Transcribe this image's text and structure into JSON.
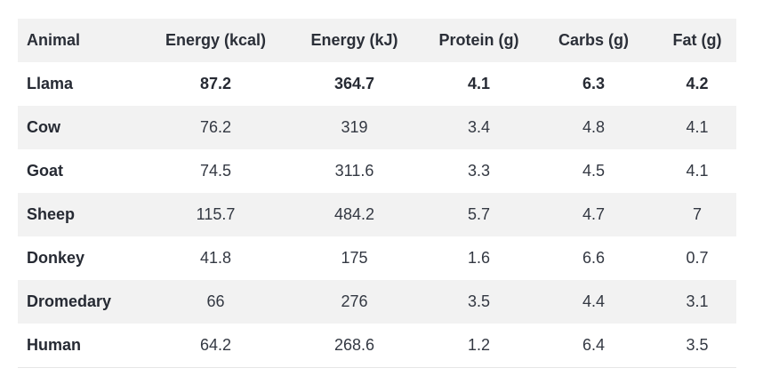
{
  "table": {
    "headers": [
      "Animal",
      "Energy (kcal)",
      "Energy (kJ)",
      "Protein (g)",
      "Carbs (g)",
      "Fat (g)"
    ],
    "rows": [
      {
        "animal": "Llama",
        "kcal": "87.2",
        "kj": "364.7",
        "protein": "4.1",
        "carbs": "6.3",
        "fat": "4.2"
      },
      {
        "animal": "Cow",
        "kcal": "76.2",
        "kj": "319",
        "protein": "3.4",
        "carbs": "4.8",
        "fat": "4.1"
      },
      {
        "animal": "Goat",
        "kcal": "74.5",
        "kj": "311.6",
        "protein": "3.3",
        "carbs": "4.5",
        "fat": "4.1"
      },
      {
        "animal": "Sheep",
        "kcal": "115.7",
        "kj": "484.2",
        "protein": "5.7",
        "carbs": "4.7",
        "fat": "7"
      },
      {
        "animal": "Donkey",
        "kcal": "41.8",
        "kj": "175",
        "protein": "1.6",
        "carbs": "6.6",
        "fat": "0.7"
      },
      {
        "animal": "Dromedary",
        "kcal": "66",
        "kj": "276",
        "protein": "3.5",
        "carbs": "4.4",
        "fat": "3.1"
      },
      {
        "animal": "Human",
        "kcal": "64.2",
        "kj": "268.6",
        "protein": "1.2",
        "carbs": "6.4",
        "fat": "3.5"
      }
    ]
  },
  "colors": {
    "header_bg": "#f2f2f2",
    "stripe_bg": "#f2f2f2",
    "text": "#262a33"
  }
}
